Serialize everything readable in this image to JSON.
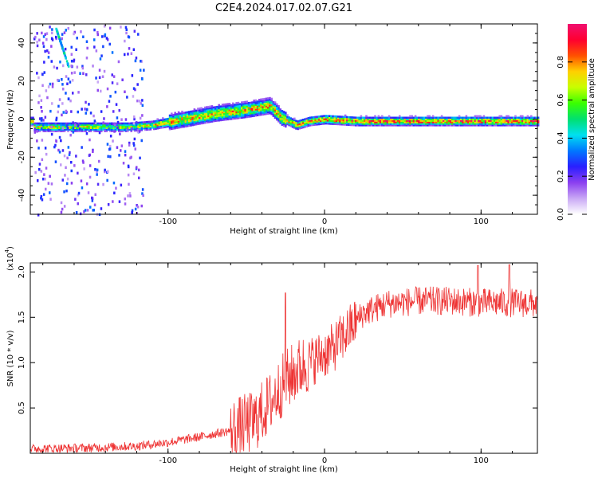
{
  "title": "C2E4.2024.017.02.07.G21",
  "chart_data": [
    {
      "type": "heatmap",
      "xlabel": "Height of straight line (km)",
      "ylabel": "Frequency (Hz)",
      "xlim": [
        -188,
        136
      ],
      "ylim": [
        -50,
        50
      ],
      "xticks": [
        -100,
        0,
        100
      ],
      "yticks": [
        -40,
        -20,
        0,
        20,
        40
      ],
      "colorbar": {
        "label": "Normalized spectral amplitude",
        "range": [
          0,
          1
        ],
        "ticks": [
          "0.0",
          "0.2",
          "0.4",
          "0.6",
          "0.8"
        ],
        "colors": [
          "#ffffff",
          "#c9a8f5",
          "#8b3ff0",
          "#2a1fff",
          "#0078ff",
          "#00e0f0",
          "#00e070",
          "#39ff00",
          "#c8ff00",
          "#ffd000",
          "#ff5000",
          "#ff0030",
          "#f01070"
        ]
      },
      "ridge": {
        "description_points": [
          {
            "x": -186,
            "y": -4
          },
          {
            "x": -150,
            "y": -4
          },
          {
            "x": -125,
            "y": -4
          },
          {
            "x": -110,
            "y": -3
          },
          {
            "x": -90,
            "y": 0
          },
          {
            "x": -70,
            "y": 3
          },
          {
            "x": -50,
            "y": 5
          },
          {
            "x": -35,
            "y": 7
          },
          {
            "x": -28,
            "y": 1
          },
          {
            "x": -18,
            "y": -3
          },
          {
            "x": -10,
            "y": -1
          },
          {
            "x": 0,
            "y": 0
          },
          {
            "x": 20,
            "y": -1
          },
          {
            "x": 60,
            "y": -1
          },
          {
            "x": 100,
            "y": -1
          },
          {
            "x": 135,
            "y": -1
          }
        ]
      }
    },
    {
      "type": "line",
      "xlabel": "Height of straight line (km)",
      "ylabel": "SNR (10 * v/v)",
      "multiplier": "(x10",
      "multiplier_exp": "4",
      "xlim": [
        -188,
        136
      ],
      "ylim": [
        0,
        2.1
      ],
      "xticks": [
        -100,
        0,
        100
      ],
      "yticks": [
        "0.5",
        "1.0",
        "1.5",
        "2.0"
      ],
      "ytick_values": [
        0.5,
        1.0,
        1.5,
        2.0
      ],
      "color": "#ee3333",
      "trend": [
        {
          "x": -188,
          "y": 0.05
        },
        {
          "x": -150,
          "y": 0.06
        },
        {
          "x": -120,
          "y": 0.08
        },
        {
          "x": -100,
          "y": 0.12
        },
        {
          "x": -80,
          "y": 0.18
        },
        {
          "x": -60,
          "y": 0.25
        },
        {
          "x": -45,
          "y": 0.35
        },
        {
          "x": -35,
          "y": 0.55
        },
        {
          "x": -25,
          "y": 0.8
        },
        {
          "x": -15,
          "y": 0.95
        },
        {
          "x": -5,
          "y": 1.05
        },
        {
          "x": 5,
          "y": 1.15
        },
        {
          "x": 15,
          "y": 1.35
        },
        {
          "x": 25,
          "y": 1.55
        },
        {
          "x": 40,
          "y": 1.65
        },
        {
          "x": 60,
          "y": 1.68
        },
        {
          "x": 80,
          "y": 1.68
        },
        {
          "x": 100,
          "y": 1.66
        },
        {
          "x": 120,
          "y": 1.66
        },
        {
          "x": 136,
          "y": 1.65
        }
      ],
      "peaks": [
        {
          "x": -25,
          "y": 1.77
        },
        {
          "x": 118,
          "y": 2.08
        },
        {
          "x": 98,
          "y": 2.07
        }
      ]
    }
  ]
}
